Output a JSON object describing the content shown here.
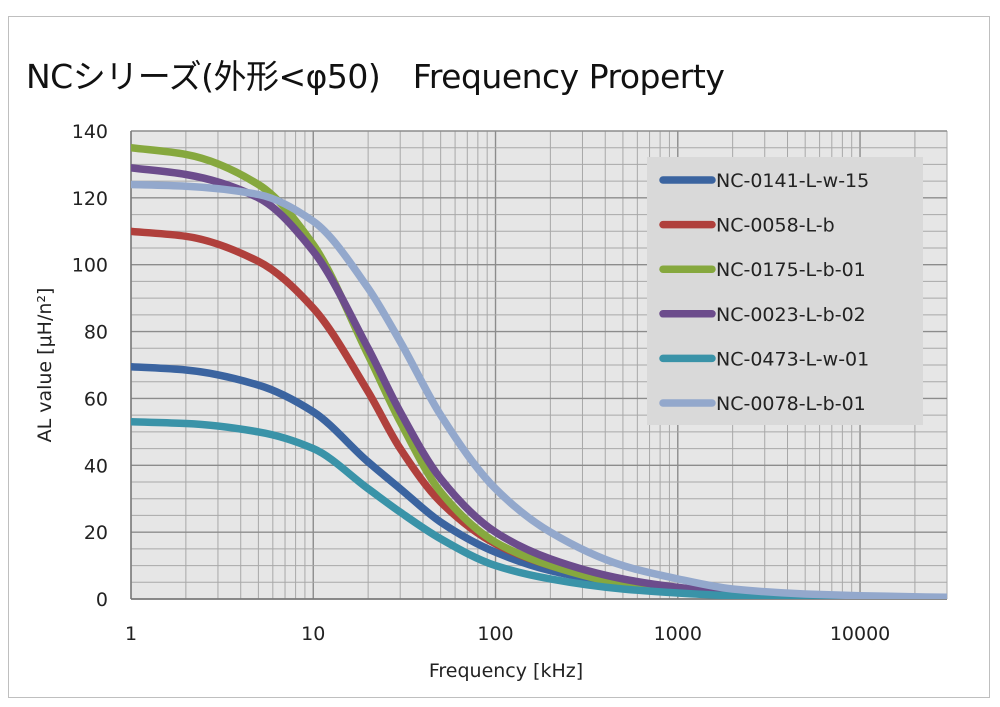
{
  "chart_data": {
    "type": "line",
    "title": "NCシリーズ(外形<φ50)　Frequency Property",
    "xlabel": "Frequency [kHz]",
    "ylabel": "AL value [μH/n²]",
    "x_scale": "log",
    "xlim": [
      1,
      30000
    ],
    "ylim": [
      0,
      140
    ],
    "x_ticks": [
      1,
      10,
      100,
      1000,
      10000
    ],
    "x_tick_labels": [
      "1",
      "10",
      "100",
      "1000",
      "10000"
    ],
    "y_ticks": [
      0,
      20,
      40,
      60,
      80,
      100,
      120,
      140
    ],
    "y_tick_labels": [
      "0",
      "20",
      "40",
      "60",
      "80",
      "100",
      "120",
      "140"
    ],
    "grid": true,
    "legend_position": "top-right",
    "plot_background": "#e6e6e6",
    "x": [
      1,
      2,
      5,
      10,
      20,
      30,
      50,
      100,
      200,
      500,
      1000,
      2000,
      5000,
      10000,
      30000
    ],
    "series": [
      {
        "name": "NC-0141-L-w-15",
        "color": "#3b64a0",
        "values": [
          69.5,
          68.5,
          64,
          56,
          41,
          33,
          23,
          14,
          8.5,
          4.5,
          2.5,
          1.5,
          0.8,
          0.5,
          0.3
        ]
      },
      {
        "name": "NC-0058-L-b",
        "color": "#b0403c",
        "values": [
          110,
          108.5,
          101,
          87,
          62,
          45,
          29,
          16.5,
          10,
          5,
          3,
          1.7,
          0.9,
          0.5,
          0.3
        ]
      },
      {
        "name": "NC-0175-L-b-01",
        "color": "#86a83e",
        "values": [
          135,
          133,
          124,
          106,
          73,
          53,
          32,
          17,
          10,
          4.5,
          2.5,
          1.5,
          0.8,
          0.5,
          0.3
        ]
      },
      {
        "name": "NC-0023-L-b-02",
        "color": "#6c4c8c",
        "values": [
          129,
          127,
          120,
          104,
          75,
          56,
          36,
          20,
          12,
          6,
          3.5,
          2,
          1,
          0.6,
          0.3
        ]
      },
      {
        "name": "NC-0473-L-w-01",
        "color": "#3a93a8",
        "values": [
          53,
          52.5,
          50,
          45,
          33,
          26,
          18,
          10,
          6,
          3,
          1.8,
          1,
          0.6,
          0.4,
          0.2
        ]
      },
      {
        "name": "NC-0078-L-b-01",
        "color": "#93a8cc",
        "values": [
          124,
          123.5,
          121,
          113,
          93,
          77,
          55,
          33,
          20,
          10,
          6,
          3,
          1.5,
          1,
          0.5
        ]
      }
    ]
  }
}
